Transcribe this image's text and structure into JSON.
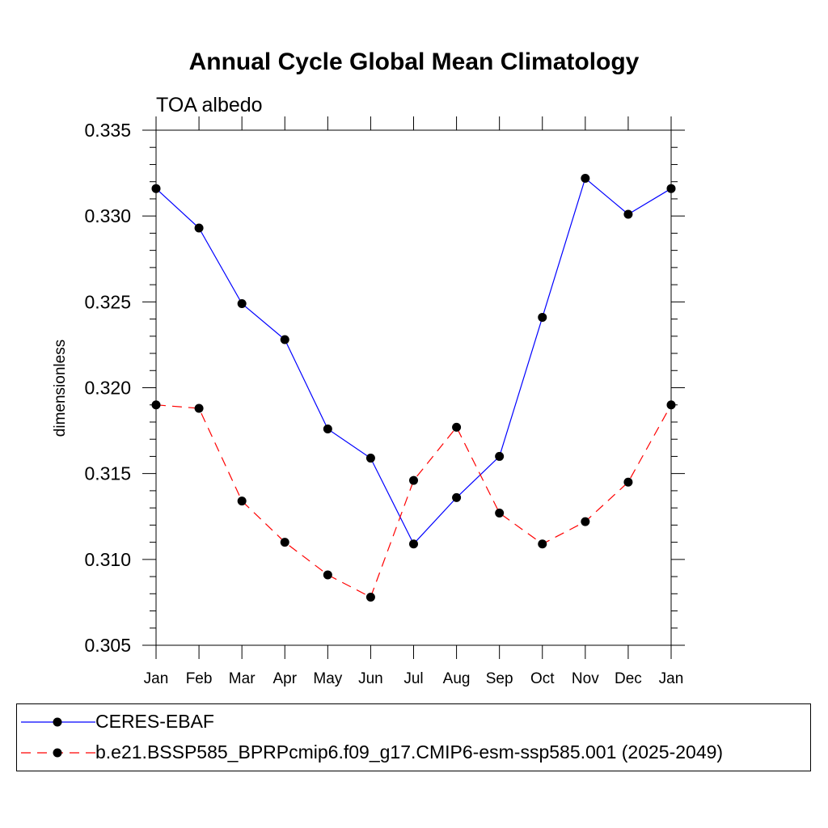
{
  "chart_data": {
    "type": "line",
    "title": "Annual Cycle Global Mean Climatology",
    "subtitle": "TOA albedo",
    "xlabel": "",
    "ylabel": "dimensionless",
    "categories": [
      "Jan",
      "Feb",
      "Mar",
      "Apr",
      "May",
      "Jun",
      "Jul",
      "Aug",
      "Sep",
      "Oct",
      "Nov",
      "Dec",
      "Jan"
    ],
    "ylim": [
      0.305,
      0.335
    ],
    "yticks": [
      "0.305",
      "0.310",
      "0.315",
      "0.320",
      "0.325",
      "0.330",
      "0.335"
    ],
    "series": [
      {
        "name": "CERES-EBAF",
        "color": "#0000ff",
        "dash": "solid",
        "marker": "filled-circle",
        "values": [
          0.3316,
          0.3293,
          0.3249,
          0.3228,
          0.3176,
          0.3159,
          0.3109,
          0.3136,
          0.316,
          0.3241,
          0.3322,
          0.3301,
          0.3316
        ]
      },
      {
        "name": "b.e21.BSSP585_BPRPcmip6.f09_g17.CMIP6-esm-ssp585.001 (2025-2049)",
        "color": "#ff0000",
        "dash": "dashed",
        "marker": "filled-circle",
        "values": [
          0.319,
          0.3188,
          0.3134,
          0.311,
          0.3091,
          0.3078,
          0.3146,
          0.3177,
          0.3127,
          0.3109,
          0.3122,
          0.3145,
          0.319
        ]
      }
    ],
    "legend_position": "bottom"
  }
}
